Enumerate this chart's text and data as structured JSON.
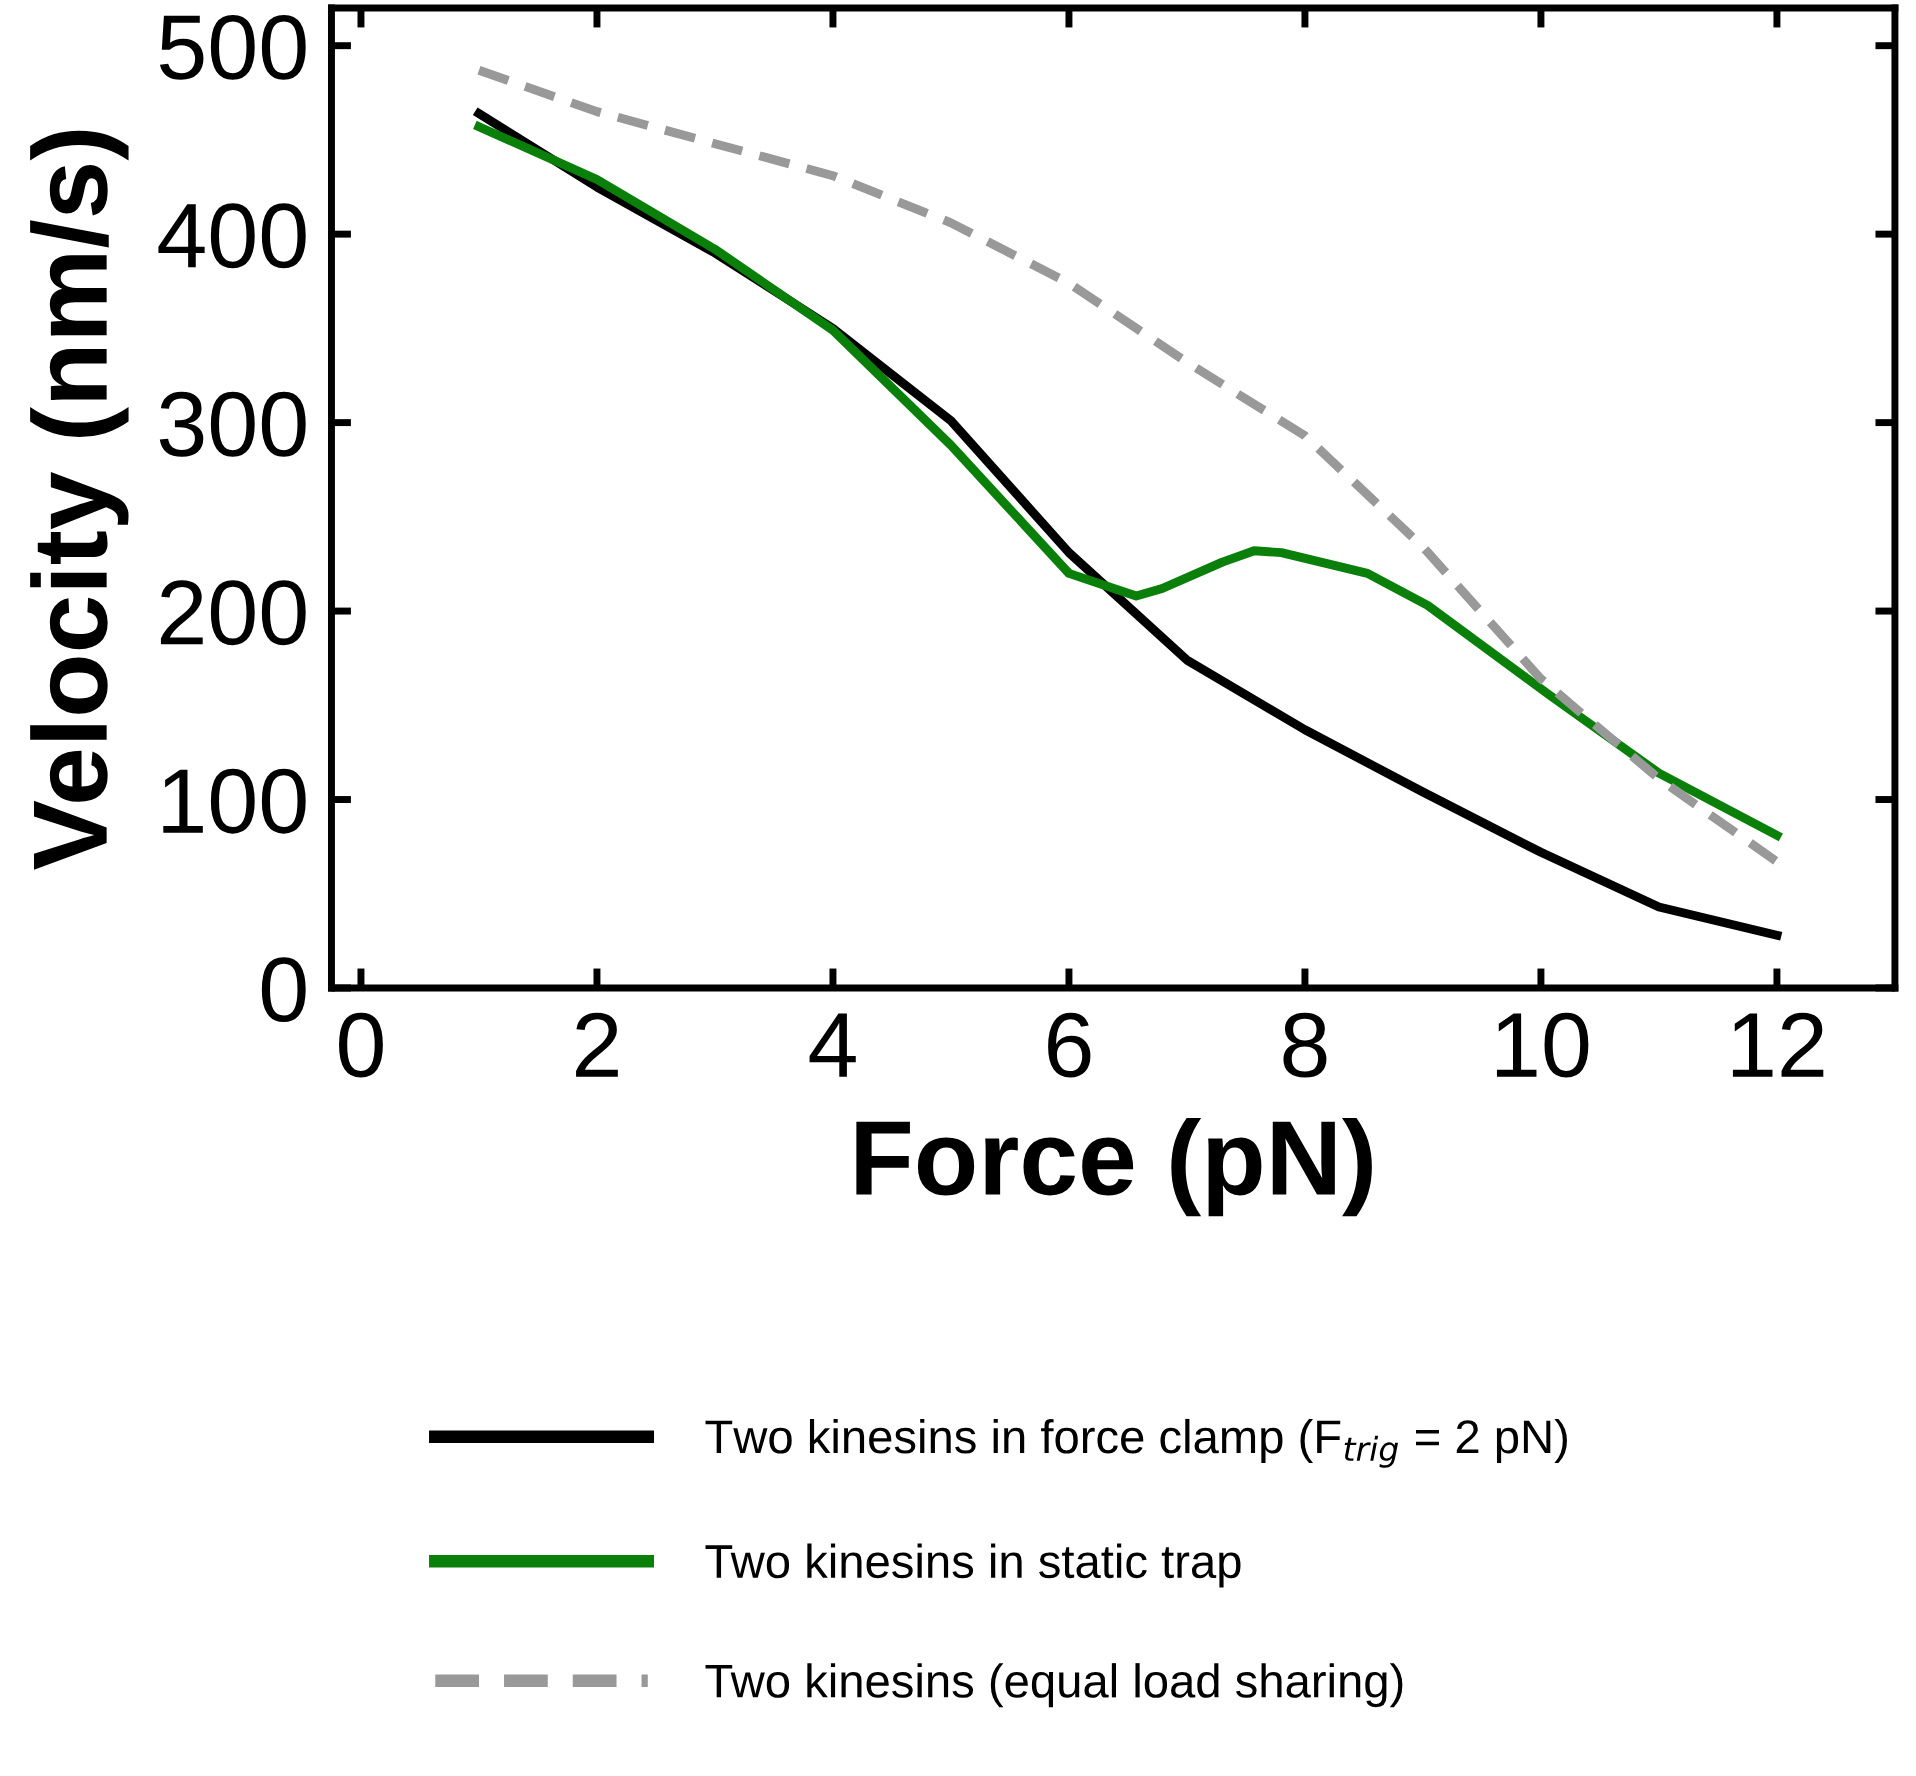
{
  "chart_data": {
    "type": "line",
    "xlabel": "Force (pN)",
    "ylabel": "Velocity (nm/s)",
    "xlim": [
      -0.25,
      13
    ],
    "ylim": [
      0,
      520
    ],
    "xticks": [
      0,
      2,
      4,
      6,
      8,
      10,
      12
    ],
    "yticks": [
      0,
      100,
      200,
      300,
      400,
      500
    ],
    "grid": false,
    "legend": "bottom",
    "marker": "none",
    "series": [
      {
        "name": "Two kinesins in force clamp (F$_{trig}$ = 2 pN)",
        "color": "#000000",
        "line_style": "solid",
        "x": [
          1,
          2,
          3,
          4,
          5,
          6,
          7,
          8,
          9,
          10,
          11,
          12
        ],
        "values": [
          464,
          425,
          390,
          350,
          301,
          231,
          174,
          137,
          104,
          72,
          43,
          28
        ]
      },
      {
        "name": "Two kinesins in static trap",
        "color": "#0a800a",
        "line_style": "solid",
        "x": [
          1,
          2,
          3,
          4,
          5,
          6,
          6.57,
          6.79,
          7.3,
          7.57,
          7.8,
          8.53,
          9.04,
          10.06,
          11,
          12
        ],
        "values": [
          457,
          429,
          392,
          349,
          288,
          220,
          208,
          212,
          226,
          232,
          231,
          220,
          203,
          156,
          114,
          81
        ]
      },
      {
        "name": "Two kinesins (equal load sharing)",
        "color": "#999999",
        "line_style": "dashed",
        "x": [
          1,
          2,
          3,
          4,
          5,
          6,
          7,
          8,
          9,
          10,
          11,
          12
        ],
        "values": [
          487,
          465,
          448,
          431,
          406,
          374,
          332,
          293,
          234,
          164,
          111,
          67
        ]
      }
    ]
  }
}
